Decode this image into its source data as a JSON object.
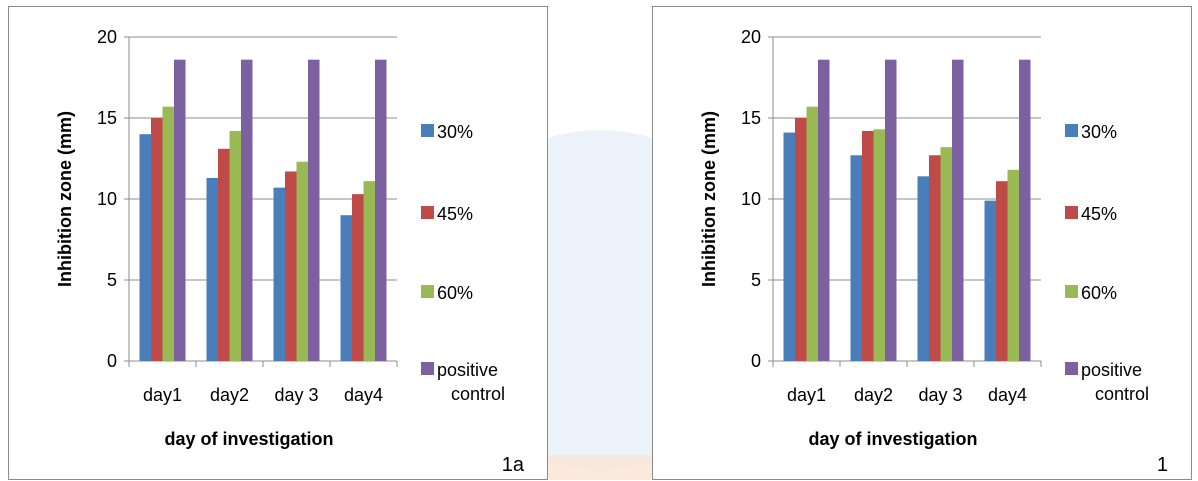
{
  "colors": {
    "series": [
      "#4a7ebb",
      "#be4b48",
      "#98b954",
      "#7d60a0"
    ],
    "watermark_blue": "#dde9f6",
    "watermark_orange": "#fbe3d6"
  },
  "chart_data": [
    {
      "type": "bar",
      "caption": "1a",
      "xlabel": "day of investigation",
      "ylabel": "Inhibition zone (mm)",
      "ylim": [
        0,
        20
      ],
      "yticks": [
        "0",
        "5",
        "10",
        "15",
        "20"
      ],
      "grid": "horizontal major gridlines",
      "legend_position": "right",
      "categories": [
        "day1",
        "day2",
        "day 3",
        "day4"
      ],
      "series": [
        {
          "name": "30%",
          "values": [
            14.0,
            11.3,
            10.7,
            9.0
          ]
        },
        {
          "name": "45%",
          "values": [
            15.0,
            13.1,
            11.7,
            10.3
          ]
        },
        {
          "name": "60%",
          "values": [
            15.7,
            14.2,
            12.3,
            11.1
          ]
        },
        {
          "name": "positive control",
          "values": [
            18.6,
            18.6,
            18.6,
            18.6
          ]
        }
      ]
    },
    {
      "type": "bar",
      "caption": "1",
      "xlabel": "day of investigation",
      "ylabel": "Inhibition zone (mm)",
      "ylim": [
        0,
        20
      ],
      "yticks": [
        "0",
        "5",
        "10",
        "15",
        "20"
      ],
      "grid": "horizontal major gridlines",
      "legend_position": "right",
      "categories": [
        "day1",
        "day2",
        "day 3",
        "day4"
      ],
      "series": [
        {
          "name": "30%",
          "values": [
            14.1,
            12.7,
            11.4,
            9.9
          ]
        },
        {
          "name": "45%",
          "values": [
            15.0,
            14.2,
            12.7,
            11.1
          ]
        },
        {
          "name": "60%",
          "values": [
            15.7,
            14.3,
            13.2,
            11.8
          ]
        },
        {
          "name": "positive control",
          "values": [
            18.6,
            18.6,
            18.6,
            18.6
          ]
        }
      ]
    }
  ]
}
